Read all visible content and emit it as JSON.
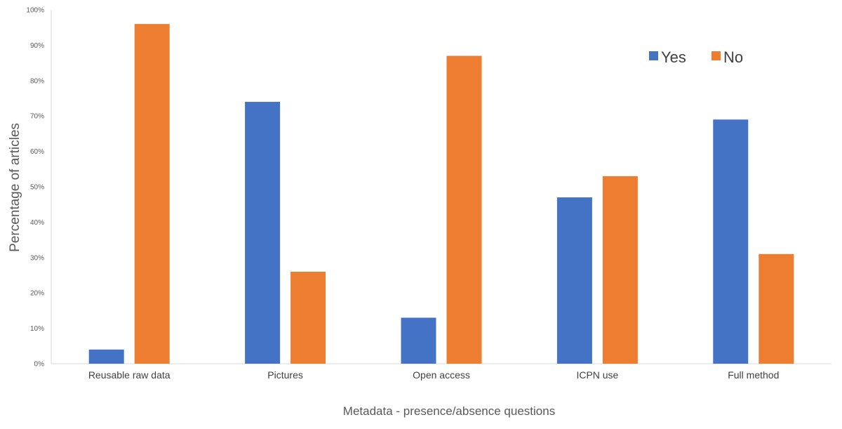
{
  "chart_data": {
    "type": "bar",
    "title": "",
    "xlabel": "Metadata - presence/absence questions",
    "ylabel": "Percentage of articles",
    "categories": [
      "Reusable raw data",
      "Pictures",
      "Open access",
      "ICPN use",
      "Full method"
    ],
    "series": [
      {
        "name": "Yes",
        "color": "#4472C4",
        "values": [
          4,
          74,
          13,
          47,
          69
        ]
      },
      {
        "name": "No",
        "color": "#ED7D31",
        "values": [
          96,
          26,
          87,
          53,
          31
        ]
      }
    ],
    "ylim": [
      0,
      100
    ],
    "yticks": [
      0,
      10,
      20,
      30,
      40,
      50,
      60,
      70,
      80,
      90,
      100
    ],
    "ytick_labels": [
      "0%",
      "10%",
      "20%",
      "30%",
      "40%",
      "50%",
      "60%",
      "70%",
      "80%",
      "90%",
      "100%"
    ],
    "grid": false,
    "legend_position": "top-right"
  }
}
